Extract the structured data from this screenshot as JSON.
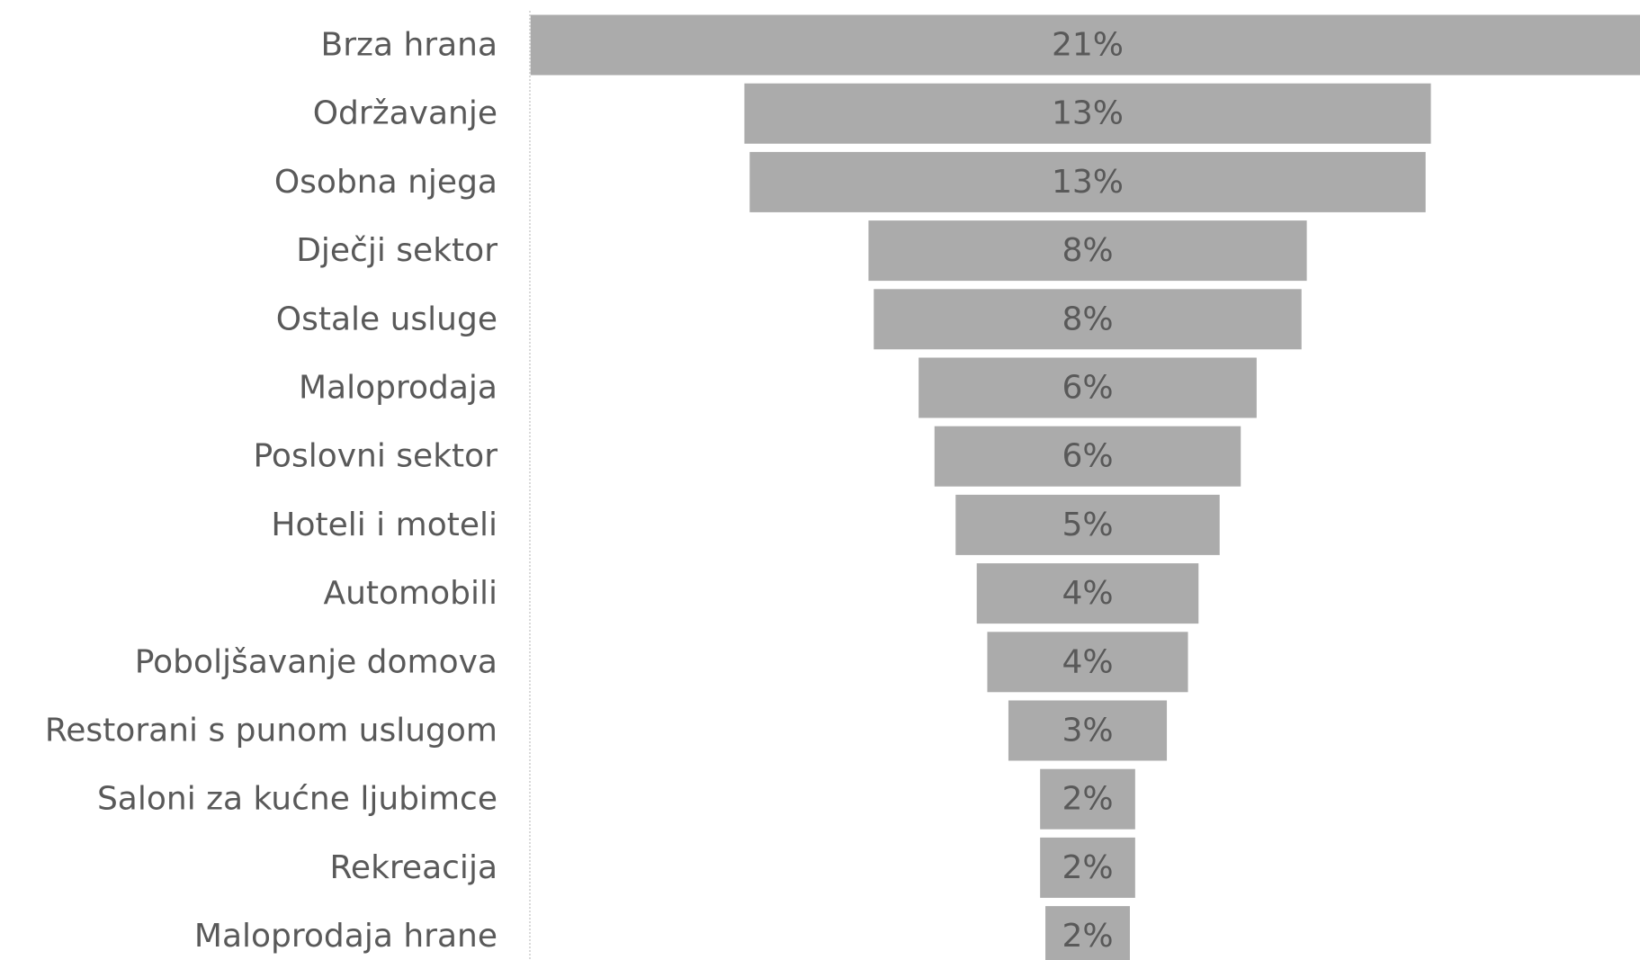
{
  "chart_data": {
    "type": "funnel",
    "categories": [
      "Brza hrana",
      "Održavanje",
      "Osobna njega",
      "Dječji sektor",
      "Ostale usluge",
      "Maloprodaja",
      "Poslovni sektor",
      "Hoteli i moteli",
      "Automobili",
      "Poboljšavanje domova",
      "Restorani s punom uslugom",
      "Saloni za kućne ljubimce",
      "Rekreacija",
      "Maloprodaja hrane"
    ],
    "values": [
      21.1,
      13.0,
      12.8,
      8.3,
      8.1,
      6.4,
      5.8,
      5.0,
      4.2,
      3.8,
      3.0,
      1.8,
      1.8,
      1.6
    ],
    "value_labels": [
      "21%",
      "13%",
      "13%",
      "8%",
      "8%",
      "6%",
      "6%",
      "5%",
      "4%",
      "4%",
      "3%",
      "2%",
      "2%",
      "2%"
    ],
    "color": "#ababab"
  }
}
